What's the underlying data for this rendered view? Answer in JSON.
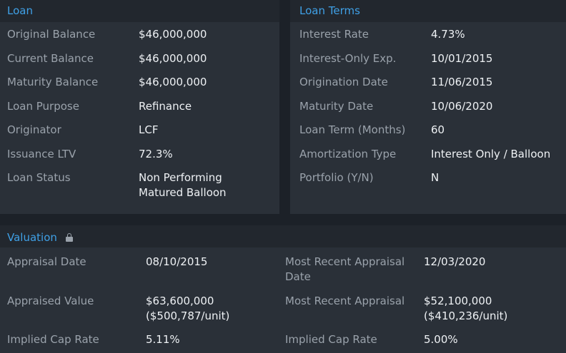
{
  "loan": {
    "title": "Loan",
    "rows": [
      {
        "label": "Original Balance",
        "value": "$46,000,000"
      },
      {
        "label": "Current Balance",
        "value": "$46,000,000"
      },
      {
        "label": "Maturity Balance",
        "value": "$46,000,000"
      },
      {
        "label": "Loan Purpose",
        "value": "Refinance"
      },
      {
        "label": "Originator",
        "value": "LCF"
      },
      {
        "label": "Issuance LTV",
        "value": "72.3%"
      },
      {
        "label": "Loan Status",
        "value_line1": "Non Performing",
        "value_line2": "Matured Balloon"
      }
    ]
  },
  "loan_terms": {
    "title": "Loan Terms",
    "rows": [
      {
        "label": "Interest Rate",
        "value": "4.73%"
      },
      {
        "label": "Interest-Only Exp.",
        "value": "10/01/2015"
      },
      {
        "label": "Origination Date",
        "value": "11/06/2015"
      },
      {
        "label": "Maturity Date",
        "value": "10/06/2020"
      },
      {
        "label": "Loan Term (Months)",
        "value": "60"
      },
      {
        "label": "Amortization Type",
        "value": "Interest Only / Balloon"
      },
      {
        "label": "Portfolio (Y/N)",
        "value": "N"
      }
    ]
  },
  "valuation": {
    "title": "Valuation",
    "lock_icon": "lock-icon",
    "left": [
      {
        "label": "Appraisal Date",
        "value": "08/10/2015"
      },
      {
        "label": "Appraised Value",
        "value_line1": "$63,600,000",
        "value_line2": "($500,787/unit)"
      },
      {
        "label": "Implied Cap Rate",
        "value": "5.11%"
      }
    ],
    "right": [
      {
        "label_line1": "Most Recent Appraisal",
        "label_line2": "Date",
        "value": "12/03/2020"
      },
      {
        "label": "Most Recent Appraisal",
        "value_line1": "$52,100,000",
        "value_line2": "($410,236/unit)"
      },
      {
        "label": "Implied Cap Rate",
        "value": "5.00%"
      }
    ]
  },
  "colors": {
    "accent": "#3fa0e6",
    "label": "#9aa2ab",
    "value": "#eef1f4",
    "panel": "#2a3038",
    "header": "#22272e",
    "background": "#1c2128"
  }
}
